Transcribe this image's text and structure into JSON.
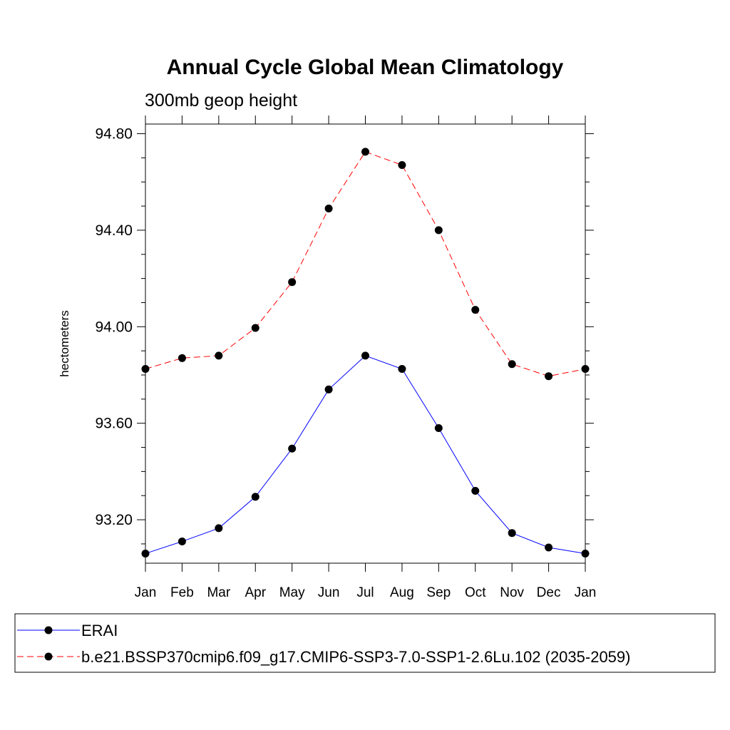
{
  "chart_data": {
    "type": "line",
    "title": "Annual Cycle Global Mean Climatology",
    "subtitle": "300mb geop height",
    "xlabel": "",
    "ylabel": "hectometers",
    "categories": [
      "Jan",
      "Feb",
      "Mar",
      "Apr",
      "May",
      "Jun",
      "Jul",
      "Aug",
      "Sep",
      "Oct",
      "Nov",
      "Dec",
      "Jan"
    ],
    "ylim": [
      93.02,
      94.84
    ],
    "yticks": [
      93.2,
      93.6,
      94.0,
      94.4,
      94.8
    ],
    "ytick_labels": [
      "93.20",
      "93.60",
      "94.00",
      "94.40",
      "94.80"
    ],
    "y_minor_step": 0.1,
    "grid": false,
    "legend_position": "bottom",
    "series": [
      {
        "name": "ERAI",
        "color": "#0000ff",
        "dash": "solid",
        "values": [
          93.06,
          93.11,
          93.165,
          93.295,
          93.495,
          93.74,
          93.88,
          93.825,
          93.58,
          93.32,
          93.145,
          93.085,
          93.06
        ]
      },
      {
        "name": "b.e21.BSSP370cmip6.f09_g17.CMIP6-SSP3-7.0-SSP1-2.6Lu.102 (2035-2059)",
        "color": "#ff0000",
        "dash": "dashed",
        "values": [
          93.825,
          93.87,
          93.88,
          93.995,
          94.185,
          94.49,
          94.725,
          94.67,
          94.4,
          94.07,
          93.845,
          93.795,
          93.825
        ]
      }
    ]
  }
}
